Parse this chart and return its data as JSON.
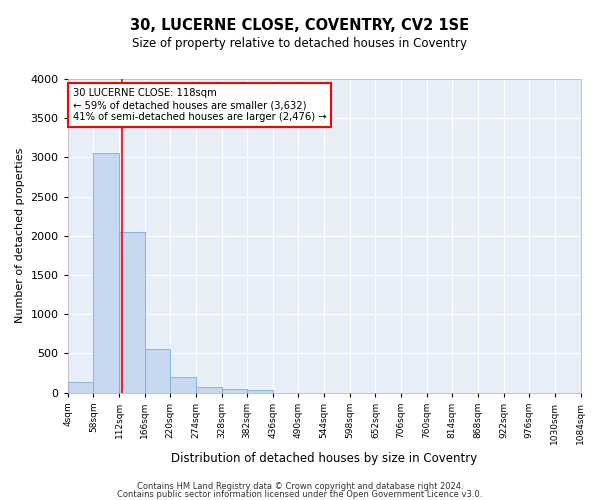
{
  "title": "30, LUCERNE CLOSE, COVENTRY, CV2 1SE",
  "subtitle": "Size of property relative to detached houses in Coventry",
  "xlabel": "Distribution of detached houses by size in Coventry",
  "ylabel": "Number of detached properties",
  "bar_color": "#c5d8f0",
  "bar_edge_color": "#7bafd4",
  "background_color": "#e8eef8",
  "grid_color": "#ffffff",
  "bins": [
    4,
    58,
    112,
    166,
    220,
    274,
    328,
    382,
    436,
    490,
    544,
    598,
    652,
    706,
    760,
    814,
    868,
    922,
    976,
    1030,
    1084
  ],
  "bar_heights": [
    140,
    3050,
    2050,
    560,
    200,
    75,
    50,
    30,
    0,
    0,
    0,
    0,
    0,
    0,
    0,
    0,
    0,
    0,
    0,
    0
  ],
  "ylim": [
    0,
    4000
  ],
  "yticks": [
    0,
    500,
    1000,
    1500,
    2000,
    2500,
    3000,
    3500,
    4000
  ],
  "vline_x": 118,
  "annotation_box_text": "30 LUCERNE CLOSE: 118sqm\n← 59% of detached houses are smaller (3,632)\n41% of semi-detached houses are larger (2,476) →",
  "annotation_box_color": "red",
  "footer_line1": "Contains HM Land Registry data © Crown copyright and database right 2024.",
  "footer_line2": "Contains public sector information licensed under the Open Government Licence v3.0.",
  "tick_labels": [
    "4sqm",
    "58sqm",
    "112sqm",
    "166sqm",
    "220sqm",
    "274sqm",
    "328sqm",
    "382sqm",
    "436sqm",
    "490sqm",
    "544sqm",
    "598sqm",
    "652sqm",
    "706sqm",
    "760sqm",
    "814sqm",
    "868sqm",
    "922sqm",
    "976sqm",
    "1030sqm",
    "1084sqm"
  ]
}
